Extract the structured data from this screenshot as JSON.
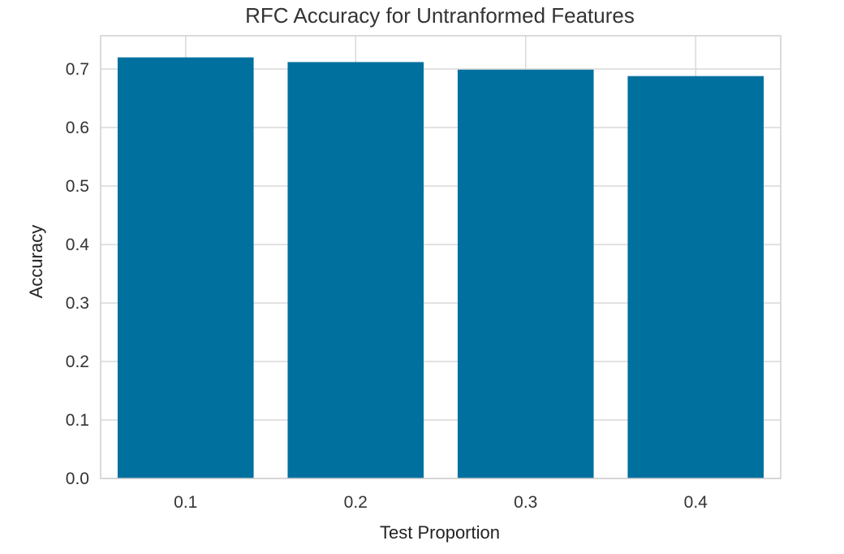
{
  "chart_data": {
    "type": "bar",
    "title": "RFC Accuracy for Untranformed Features",
    "xlabel": "Test Proportion",
    "ylabel": "Accuracy",
    "categories": [
      "0.1",
      "0.2",
      "0.3",
      "0.4"
    ],
    "values": [
      0.72,
      0.712,
      0.699,
      0.688
    ],
    "ylim": [
      0,
      0.757
    ],
    "yticks": [
      "0.0",
      "0.1",
      "0.2",
      "0.3",
      "0.4",
      "0.5",
      "0.6",
      "0.7"
    ],
    "grid": true,
    "bar_color": "#00709f",
    "grid_color": "#d9d9d9",
    "frame_color": "#cfcfcf"
  }
}
